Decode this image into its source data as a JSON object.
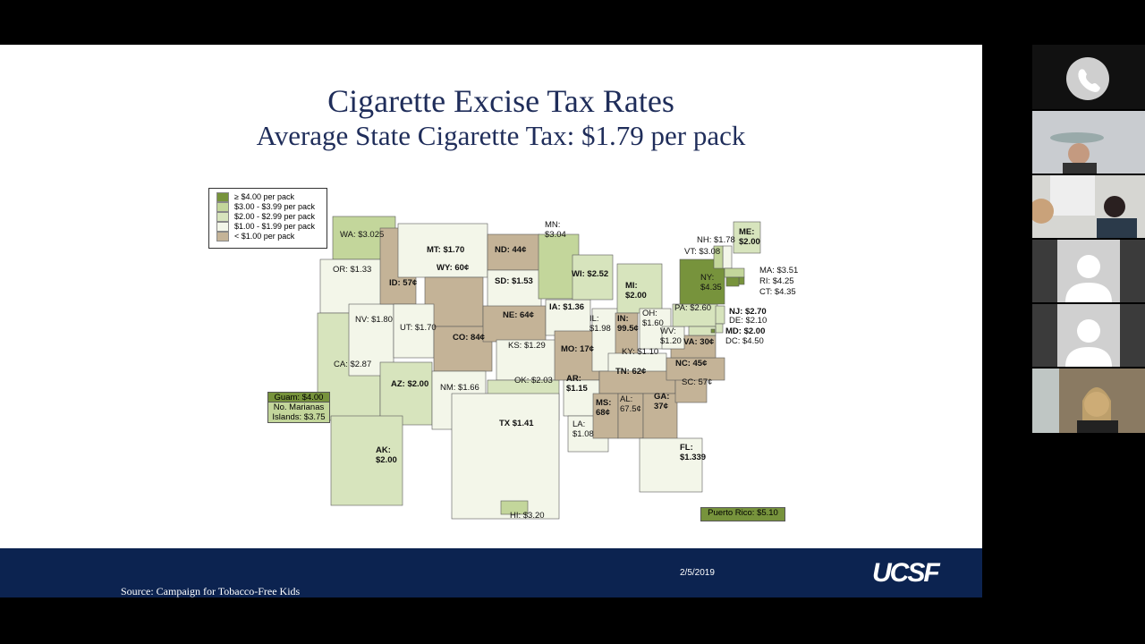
{
  "slide": {
    "title": "Cigarette Excise Tax Rates",
    "subtitle": "Average State Cigarette Tax: $1.79 per pack",
    "legend": [
      {
        "label": "≥ $4.00 per pack",
        "color": "#77933c"
      },
      {
        "label": "$3.00 - $3.99 per pack",
        "color": "#c3d69b"
      },
      {
        "label": "$2.00 - $2.99 per pack",
        "color": "#d7e4bd"
      },
      {
        "label": "$1.00 - $1.99 per pack",
        "color": "#f3f6e9"
      },
      {
        "label": "< $1.00 per pack",
        "color": "#c4b397"
      }
    ],
    "states": [
      {
        "label": "WA: $3.025",
        "color": "#c3d69b"
      },
      {
        "label": "OR: $1.33",
        "color": "#f3f6e9"
      },
      {
        "label": "CA: $2.87",
        "color": "#d7e4bd"
      },
      {
        "label": "NV: $1.80",
        "color": "#f3f6e9"
      },
      {
        "label": "ID: 57¢",
        "color": "#c4b397"
      },
      {
        "label": "MT: $1.70",
        "color": "#f3f6e9"
      },
      {
        "label": "WY: 60¢",
        "color": "#c4b397"
      },
      {
        "label": "UT: $1.70",
        "color": "#f3f6e9"
      },
      {
        "label": "CO: 84¢",
        "color": "#c4b397"
      },
      {
        "label": "AZ: $2.00",
        "color": "#d7e4bd"
      },
      {
        "label": "NM: $1.66",
        "color": "#f3f6e9"
      },
      {
        "label": "ND: 44¢",
        "color": "#c4b397"
      },
      {
        "label": "SD: $1.53",
        "color": "#f3f6e9"
      },
      {
        "label": "NE: 64¢",
        "color": "#c4b397"
      },
      {
        "label": "KS: $1.29",
        "color": "#f3f6e9"
      },
      {
        "label": "OK: $2.03",
        "color": "#d7e4bd"
      },
      {
        "label": "TX $1.41",
        "color": "#f3f6e9"
      },
      {
        "label": "MN: $3.04",
        "color": "#c3d69b"
      },
      {
        "label": "IA: $1.36",
        "color": "#f3f6e9"
      },
      {
        "label": "MO: 17¢",
        "color": "#c4b397"
      },
      {
        "label": "AR: $1.15",
        "color": "#f3f6e9"
      },
      {
        "label": "LA: $1.08",
        "color": "#f3f6e9"
      },
      {
        "label": "WI: $2.52",
        "color": "#d7e4bd"
      },
      {
        "label": "IL: $1.98",
        "color": "#f3f6e9"
      },
      {
        "label": "MI: $2.00",
        "color": "#d7e4bd"
      },
      {
        "label": "IN: 99.5¢",
        "color": "#c4b397"
      },
      {
        "label": "OH: $1.60",
        "color": "#f3f6e9"
      },
      {
        "label": "KY: $1.10",
        "color": "#f3f6e9"
      },
      {
        "label": "TN: 62¢",
        "color": "#c4b397"
      },
      {
        "label": "MS: 68¢",
        "color": "#c4b397"
      },
      {
        "label": "AL: 67.5¢",
        "color": "#c4b397"
      },
      {
        "label": "GA: 37¢",
        "color": "#c4b397"
      },
      {
        "label": "FL: $1.339",
        "color": "#f3f6e9"
      },
      {
        "label": "SC: 57¢",
        "color": "#c4b397"
      },
      {
        "label": "NC: 45¢",
        "color": "#c4b397"
      },
      {
        "label": "VA: 30¢",
        "color": "#c4b397"
      },
      {
        "label": "WV: $1.20",
        "color": "#f3f6e9"
      },
      {
        "label": "PA: $2.60",
        "color": "#d7e4bd"
      },
      {
        "label": "NY: $4.35",
        "color": "#77933c"
      },
      {
        "label": "ME: $2.00",
        "color": "#d7e4bd"
      },
      {
        "label": "NH: $1.78",
        "color": "#f3f6e9"
      },
      {
        "label": "VT: $3.08",
        "color": "#c3d69b"
      },
      {
        "label": "MA: $3.51",
        "color": "#c3d69b"
      },
      {
        "label": "RI: $4.25",
        "color": "#77933c"
      },
      {
        "label": "CT: $4.35",
        "color": "#77933c"
      },
      {
        "label": "NJ: $2.70",
        "color": "#d7e4bd"
      },
      {
        "label": "DE: $2.10",
        "color": "#d7e4bd"
      },
      {
        "label": "MD: $2.00",
        "color": "#d7e4bd"
      },
      {
        "label": "DC: $4.50",
        "color": "#77933c"
      },
      {
        "label": "AK: $2.00",
        "color": "#d7e4bd"
      },
      {
        "label": "HI: $3.20",
        "color": "#c3d69b"
      }
    ],
    "territories": [
      {
        "label": "Guam: $4.00",
        "color": "#77933c"
      },
      {
        "label": "No. Marianas Islands: $3.75",
        "color": "#c3d69b"
      },
      {
        "label": "Puerto Rico: $5.10",
        "color": "#77933c"
      }
    ],
    "date": "2/5/2019",
    "logo": "UCSF",
    "source": "Source: Campaign for Tobacco-Free Kids"
  }
}
